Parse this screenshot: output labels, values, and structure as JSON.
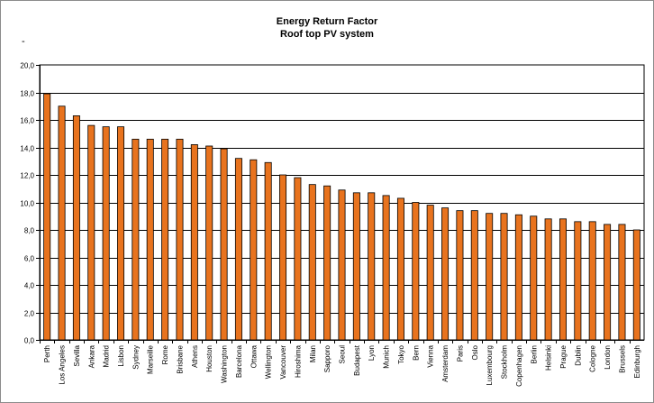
{
  "chart_data": {
    "type": "bar",
    "title": "Energy Return Factor",
    "subtitle": "Roof top PV system",
    "ylim": [
      0,
      20
    ],
    "yticks": [
      "0,0",
      "2,0",
      "4,0",
      "6,0",
      "8,0",
      "10,0",
      "12,0",
      "14,0",
      "16,0",
      "18,0",
      "20,0"
    ],
    "grid": true,
    "bar_color": "#e8731e",
    "categories": [
      "Perth",
      "Los Angeles",
      "Sevilla",
      "Ankara",
      "Madrid",
      "Lisbon",
      "Sydney",
      "Marseille",
      "Rome",
      "Brisbane",
      "Athens",
      "Houston",
      "Washington",
      "Barcelona",
      "Ottawa",
      "Wellington",
      "Vancouver",
      "Hiroshima",
      "Milan",
      "Sapporo",
      "Seoul",
      "Budapest",
      "Lyon",
      "Munich",
      "Tokyo",
      "Bern",
      "Vienna",
      "Amsterdam",
      "Paris",
      "Oslo",
      "Luxembourg",
      "Stockholm",
      "Copenhagen",
      "Berlin",
      "Helsinki",
      "Prague",
      "Dublin",
      "Cologne",
      "London",
      "Brussels",
      "Edinburgh"
    ],
    "values": [
      17.9,
      17.0,
      16.3,
      15.6,
      15.5,
      15.5,
      14.6,
      14.6,
      14.6,
      14.6,
      14.2,
      14.1,
      13.9,
      13.2,
      13.1,
      12.9,
      12.0,
      11.8,
      11.3,
      11.2,
      10.9,
      10.7,
      10.7,
      10.5,
      10.3,
      10.0,
      9.8,
      9.6,
      9.4,
      9.4,
      9.2,
      9.2,
      9.1,
      9.0,
      8.8,
      8.8,
      8.6,
      8.6,
      8.4,
      8.4,
      8.0
    ]
  },
  "stray_mark": "-"
}
